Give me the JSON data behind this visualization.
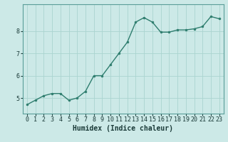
{
  "x": [
    0,
    1,
    2,
    3,
    4,
    5,
    6,
    7,
    8,
    9,
    10,
    11,
    12,
    13,
    14,
    15,
    16,
    17,
    18,
    19,
    20,
    21,
    22,
    23
  ],
  "y": [
    4.7,
    4.9,
    5.1,
    5.2,
    5.2,
    4.9,
    5.0,
    5.3,
    6.0,
    6.0,
    6.5,
    7.0,
    7.5,
    8.4,
    8.6,
    8.4,
    7.95,
    7.95,
    8.05,
    8.05,
    8.1,
    8.2,
    8.65,
    8.55
  ],
  "line_color": "#2e7d6e",
  "marker": "o",
  "markersize": 2.0,
  "linewidth": 1.0,
  "bg_color": "#cce9e7",
  "grid_color": "#aad4d0",
  "xlabel": "Humidex (Indice chaleur)",
  "xlabel_fontsize": 7,
  "tick_fontsize": 6,
  "ylim": [
    4.3,
    9.2
  ],
  "xlim": [
    -0.5,
    23.5
  ],
  "yticks": [
    5,
    6,
    7,
    8
  ],
  "xticks": [
    0,
    1,
    2,
    3,
    4,
    5,
    6,
    7,
    8,
    9,
    10,
    11,
    12,
    13,
    14,
    15,
    16,
    17,
    18,
    19,
    20,
    21,
    22,
    23
  ],
  "spine_color": "#5a9e99"
}
